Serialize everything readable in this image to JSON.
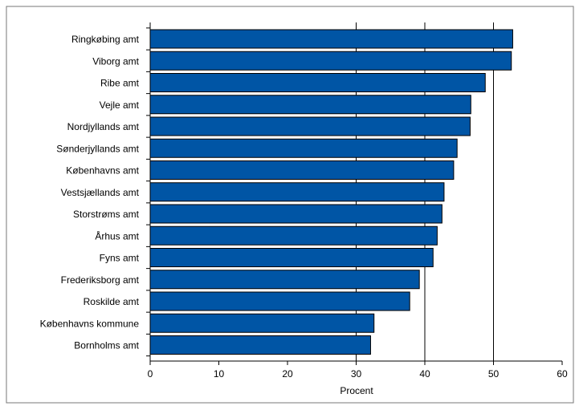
{
  "chart_data": {
    "type": "bar",
    "orientation": "horizontal",
    "categories": [
      "Ringkøbing amt",
      "Viborg amt",
      "Ribe amt",
      "Vejle amt",
      "Nordjyllands amt",
      "Sønderjyllands amt",
      "Københavns amt",
      "Vestsjællands amt",
      "Storstrøms amt",
      "Århus amt",
      "Fyns amt",
      "Frederiksborg amt",
      "Roskilde amt",
      "Københavns kommune",
      "Bornholms amt"
    ],
    "values": [
      52.8,
      52.6,
      48.8,
      46.7,
      46.6,
      44.7,
      44.2,
      42.8,
      42.5,
      41.8,
      41.2,
      39.2,
      37.8,
      32.6,
      32.1
    ],
    "xlabel": "Procent",
    "xlim": [
      0,
      60
    ],
    "xticks": [
      0,
      10,
      20,
      30,
      40,
      50,
      60
    ],
    "tick_labels": [
      "0",
      "10",
      "20",
      "30",
      "40",
      "50",
      "60"
    ],
    "grid": "vertical lines at 30, 40, 50",
    "bar_color": "#0055A5",
    "bar_edge_color": "#000000"
  }
}
